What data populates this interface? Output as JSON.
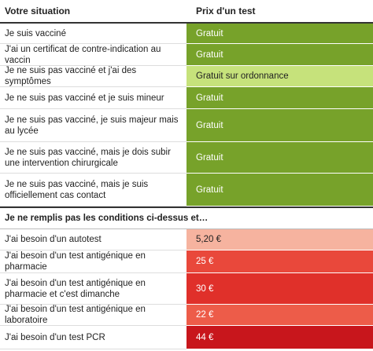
{
  "table": {
    "header": [
      "Votre situation",
      "Prix d'un test"
    ],
    "rows": [
      {
        "situation": "Je suis vacciné",
        "price": "Gratuit",
        "color": "#77a22a",
        "dark": true
      },
      {
        "situation": "J'ai un certificat de contre-indication au vaccin",
        "price": "Gratuit",
        "color": "#77a22a",
        "dark": true
      },
      {
        "situation": "Je ne suis pas vacciné et j'ai des symptômes",
        "price": "Gratuit sur ordonnance",
        "color": "#c6e27b",
        "dark": false
      },
      {
        "situation": "Je ne suis pas vacciné et je suis mineur",
        "price": "Gratuit",
        "color": "#77a22a",
        "dark": true
      },
      {
        "situation": "Je ne suis pas vacciné, je suis majeur mais au lycée",
        "price": "Gratuit",
        "color": "#77a22a",
        "dark": true
      },
      {
        "situation": "Je ne suis pas vacciné, mais je dois subir une intervention chirurgicale",
        "price": "Gratuit",
        "color": "#77a22a",
        "dark": true
      },
      {
        "situation": "Je ne suis pas vacciné, mais je suis officiellement cas contact",
        "price": "Gratuit",
        "color": "#77a22a",
        "dark": true
      }
    ]
  },
  "section": {
    "title": "Je ne remplis pas les conditions ci-dessus et…",
    "rows": [
      {
        "situation": "J'ai besoin d'un autotest",
        "price": "5,20 €",
        "color": "#f6b39f",
        "dark": false
      },
      {
        "situation": "J'ai besoin d'un test antigénique en pharmacie",
        "price": "25 €",
        "color": "#e9483b",
        "dark": true
      },
      {
        "situation": "J'ai besoin d'un test antigénique en pharmacie et c'est dimanche",
        "price": "30 €",
        "color": "#e0302a",
        "dark": true
      },
      {
        "situation": "J'ai besoin d'un test antigénique en laboratoire",
        "price": "22 €",
        "color": "#ed5c49",
        "dark": true
      },
      {
        "situation": "J'ai besoin d'un test PCR",
        "price": "44 €",
        "color": "#c8161c",
        "dark": true
      }
    ]
  }
}
